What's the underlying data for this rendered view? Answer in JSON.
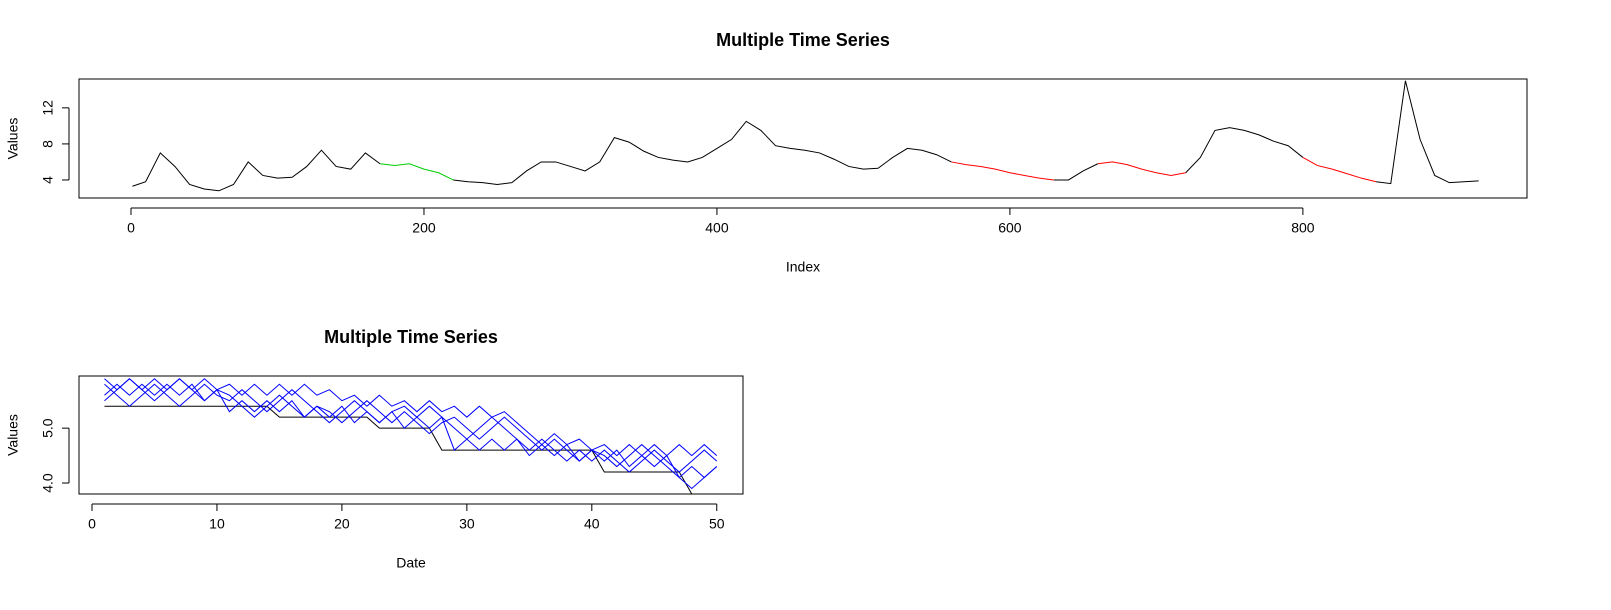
{
  "chart_data": [
    {
      "type": "line",
      "title": "Multiple Time Series",
      "xlabel": "Index",
      "ylabel": "Values",
      "x": [
        1,
        10,
        20,
        30,
        40,
        50,
        60,
        70,
        80,
        90,
        100,
        110,
        120,
        130,
        140,
        150,
        160,
        170,
        180,
        190,
        200,
        210,
        220,
        230,
        240,
        250,
        260,
        270,
        280,
        290,
        300,
        310,
        320,
        330,
        340,
        350,
        360,
        370,
        380,
        390,
        400,
        410,
        420,
        430,
        440,
        450,
        460,
        470,
        480,
        490,
        500,
        510,
        520,
        530,
        540,
        550,
        560,
        570,
        580,
        590,
        600,
        610,
        620,
        630,
        640,
        650,
        660,
        670,
        680,
        690,
        700,
        710,
        720,
        730,
        740,
        750,
        760,
        770,
        780,
        790,
        800,
        810,
        820,
        830,
        840,
        850,
        860,
        870,
        880,
        890,
        900,
        910,
        920
      ],
      "series": [
        {
          "color": "#000000",
          "values": [
            3.3,
            3.8,
            7.0,
            5.5,
            3.5,
            3.0,
            2.8,
            3.5,
            6.0,
            4.5,
            4.2,
            4.3,
            5.5,
            7.3,
            5.5,
            5.2,
            7.0,
            5.8,
            null,
            null,
            null,
            null,
            4.0,
            3.8,
            3.7,
            3.5,
            3.7,
            5.0,
            6.0,
            6.0,
            5.5,
            5.0,
            6.0,
            8.7,
            8.2,
            7.2,
            6.5,
            6.2,
            6.0,
            6.5,
            7.5,
            8.5,
            10.5,
            9.5,
            7.8,
            7.5,
            7.3,
            7.0,
            6.3,
            5.5,
            5.2,
            5.3,
            6.5,
            7.5,
            7.3,
            6.8,
            6.0,
            null,
            null,
            null,
            null,
            null,
            null,
            4.0,
            4.0,
            5.0,
            5.8,
            null,
            null,
            null,
            null,
            null,
            4.8,
            6.5,
            9.5,
            9.8,
            9.5,
            9.0,
            8.3,
            7.8,
            6.5,
            null,
            null,
            null,
            null,
            3.8,
            3.6,
            15,
            8.5,
            4.5,
            3.7,
            3.8,
            3.9
          ]
        },
        {
          "color": "#00cd00",
          "values": [
            null,
            null,
            null,
            null,
            null,
            null,
            null,
            null,
            null,
            null,
            null,
            null,
            null,
            null,
            null,
            null,
            null,
            5.8,
            5.6,
            5.8,
            5.2,
            4.8,
            4.0,
            null,
            null,
            null,
            null,
            null,
            null,
            null,
            null,
            null,
            null,
            null,
            null,
            null,
            null,
            null,
            null,
            null,
            null,
            null,
            null,
            null,
            null,
            null,
            null,
            null,
            null,
            null,
            null,
            null,
            null,
            null,
            null,
            null,
            null,
            null,
            null,
            null,
            null,
            null,
            null,
            null,
            null,
            null,
            null,
            null,
            null,
            null,
            null,
            null,
            null,
            null,
            null,
            null,
            null,
            null,
            null,
            null,
            null,
            null,
            null,
            null,
            null,
            null,
            null,
            null,
            null,
            null,
            null,
            null,
            null
          ]
        },
        {
          "color": "#ff0000",
          "values": [
            null,
            null,
            null,
            null,
            null,
            null,
            null,
            null,
            null,
            null,
            null,
            null,
            null,
            null,
            null,
            null,
            null,
            null,
            null,
            null,
            null,
            null,
            null,
            null,
            null,
            null,
            null,
            null,
            null,
            null,
            null,
            null,
            null,
            null,
            null,
            null,
            null,
            null,
            null,
            null,
            null,
            null,
            null,
            null,
            null,
            null,
            null,
            null,
            null,
            null,
            null,
            null,
            null,
            null,
            null,
            null,
            6.0,
            5.7,
            5.5,
            5.2,
            4.8,
            4.5,
            4.2,
            4.0,
            null,
            null,
            5.8,
            6.0,
            5.7,
            5.2,
            4.8,
            4.5,
            4.8,
            null,
            null,
            null,
            null,
            null,
            null,
            null,
            6.5,
            5.6,
            5.2,
            4.7,
            4.2,
            3.8,
            null,
            null,
            null,
            null,
            null,
            null,
            null
          ]
        }
      ],
      "xlim": [
        -35.5,
        953
      ],
      "ylim": [
        2.0,
        15.2
      ],
      "xticks": [
        0,
        200,
        400,
        600,
        800
      ],
      "yticks": [
        4,
        8,
        12
      ]
    },
    {
      "type": "line",
      "title": "Multiple Time Series",
      "xlabel": "Date",
      "ylabel": "Values",
      "x": [
        1,
        2,
        3,
        4,
        5,
        6,
        7,
        8,
        9,
        10,
        11,
        12,
        13,
        14,
        15,
        16,
        17,
        18,
        19,
        20,
        21,
        22,
        23,
        24,
        25,
        26,
        27,
        28,
        29,
        30,
        31,
        32,
        33,
        34,
        35,
        36,
        37,
        38,
        39,
        40,
        41,
        42,
        43,
        44,
        45,
        46,
        47,
        48,
        49,
        50
      ],
      "series": [
        {
          "color": "#000000",
          "values": [
            5.4,
            5.4,
            5.4,
            5.4,
            5.4,
            5.4,
            5.4,
            5.4,
            5.4,
            5.4,
            5.4,
            5.4,
            5.4,
            5.4,
            5.2,
            5.2,
            5.2,
            5.2,
            5.2,
            5.2,
            5.2,
            5.2,
            5.0,
            5.0,
            5.0,
            5.0,
            5.0,
            4.6,
            4.6,
            4.6,
            4.6,
            4.6,
            4.6,
            4.6,
            4.6,
            4.6,
            4.6,
            4.6,
            4.6,
            4.6,
            4.2,
            4.2,
            4.2,
            4.2,
            4.2,
            4.2,
            4.2,
            3.8,
            3.8,
            3.8
          ]
        },
        {
          "color": "#0000ff",
          "values": [
            5.9,
            5.7,
            5.9,
            5.7,
            5.9,
            5.7,
            5.9,
            5.7,
            5.9,
            5.7,
            5.8,
            5.6,
            5.8,
            5.6,
            5.8,
            5.6,
            5.8,
            5.6,
            5.7,
            5.5,
            5.6,
            5.4,
            5.6,
            5.4,
            5.5,
            5.3,
            5.5,
            5.3,
            5.4,
            5.2,
            5.4,
            5.2,
            5.3,
            5.1,
            4.9,
            4.7,
            4.9,
            4.7,
            4.8,
            4.6,
            4.7,
            4.5,
            4.7,
            4.5,
            4.7,
            4.5,
            4.7,
            4.5,
            4.7,
            4.5
          ]
        },
        {
          "color": "#0000ff",
          "values": [
            5.6,
            5.8,
            5.6,
            5.8,
            5.6,
            5.8,
            5.6,
            5.8,
            5.5,
            5.7,
            5.3,
            5.5,
            5.3,
            5.5,
            5.3,
            5.5,
            5.2,
            5.4,
            5.2,
            5.4,
            5.1,
            5.3,
            5.1,
            5.3,
            5.0,
            5.2,
            5.0,
            5.2,
            4.6,
            4.8,
            4.6,
            4.8,
            4.6,
            4.8,
            4.5,
            4.7,
            4.5,
            4.7,
            4.4,
            4.6,
            4.4,
            4.6,
            4.3,
            4.5,
            4.3,
            4.5,
            4.1,
            4.3,
            4.1,
            4.3
          ]
        },
        {
          "color": "#0000ff",
          "values": [
            5.5,
            5.7,
            5.9,
            5.7,
            5.5,
            5.7,
            5.9,
            5.7,
            5.5,
            5.7,
            5.6,
            5.4,
            5.2,
            5.4,
            5.6,
            5.4,
            5.2,
            5.4,
            5.3,
            5.1,
            5.3,
            5.5,
            5.3,
            5.1,
            5.3,
            5.1,
            4.9,
            5.1,
            5.2,
            5.0,
            4.8,
            5.0,
            5.2,
            5.0,
            4.8,
            4.6,
            4.8,
            4.6,
            4.4,
            4.6,
            4.5,
            4.3,
            4.5,
            4.7,
            4.5,
            4.3,
            4.1,
            3.9,
            4.1,
            4.3
          ]
        },
        {
          "color": "#0000ff",
          "values": [
            5.8,
            5.6,
            5.4,
            5.6,
            5.8,
            5.6,
            5.4,
            5.6,
            5.8,
            5.6,
            5.5,
            5.7,
            5.5,
            5.3,
            5.5,
            5.7,
            5.5,
            5.3,
            5.1,
            5.3,
            5.5,
            5.3,
            5.1,
            5.3,
            5.4,
            5.2,
            5.4,
            5.2,
            5.0,
            4.8,
            5.0,
            5.2,
            5.0,
            4.8,
            4.6,
            4.8,
            4.6,
            4.4,
            4.6,
            4.4,
            4.6,
            4.4,
            4.2,
            4.4,
            4.6,
            4.4,
            4.2,
            4.4,
            4.6,
            4.4
          ]
        }
      ],
      "xlim": [
        -1.04,
        52.1
      ],
      "ylim": [
        3.8,
        5.95
      ],
      "xticks": [
        0,
        10,
        20,
        30,
        40,
        50
      ],
      "yticks": [
        {
          "value": 4,
          "label": "4.0"
        },
        {
          "value": 5,
          "label": "5.0"
        }
      ]
    }
  ]
}
